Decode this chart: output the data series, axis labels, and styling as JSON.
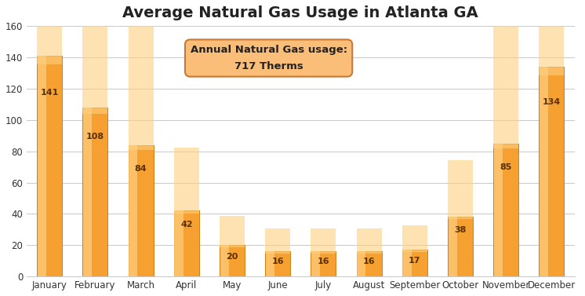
{
  "title": "Average Natural Gas Usage in Atlanta GA",
  "categories": [
    "January",
    "February",
    "March",
    "April",
    "May",
    "June",
    "July",
    "August",
    "September",
    "October",
    "November",
    "December"
  ],
  "values": [
    141,
    108,
    84,
    42,
    20,
    16,
    16,
    16,
    17,
    38,
    85,
    134
  ],
  "bar_color_main": "#F5A030",
  "bar_color_light": "#FFD080",
  "bar_color_edge": "#D08010",
  "ylim": [
    0,
    160
  ],
  "yticks": [
    0,
    20,
    40,
    60,
    80,
    100,
    120,
    140,
    160
  ],
  "annotation_text": "Annual Natural Gas usage:\n717 Therms",
  "annotation_box_color": "#FBBE78",
  "annotation_box_edge": "#C87830",
  "background_color": "#FFFFFF",
  "plot_bg_color": "#FFFFFF",
  "grid_color": "#CCCCCC",
  "title_fontsize": 14,
  "label_fontsize": 8.5,
  "value_fontsize": 8,
  "value_color": "#5A3000"
}
